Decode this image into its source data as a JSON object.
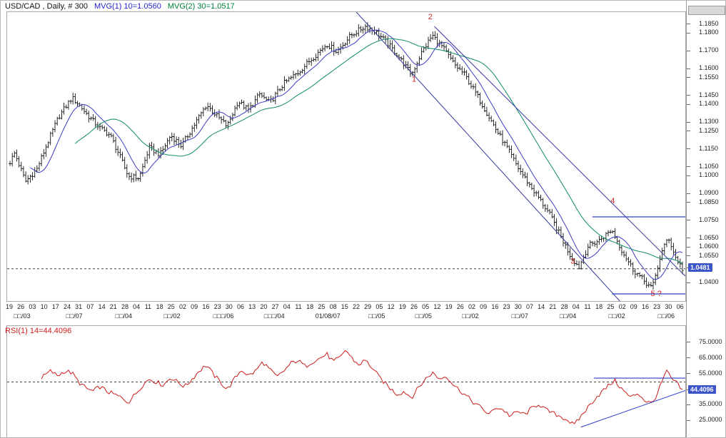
{
  "header": {
    "symbol_title": "USD/CAD , Daily, # 300",
    "mvg1_label": "MVG(1) 10=1.0560",
    "mvg2_label": "MVG(2) 30=1.0517"
  },
  "rsi_header": {
    "label": "RSI(1) 14=44.4096"
  },
  "colors": {
    "symbol_text": "#111111",
    "mvg1_text": "#2323cc",
    "mvg2_text": "#00803c",
    "rsi_text": "#cc1c1c",
    "bars": "#151515",
    "mvg10_line": "#3a3ec2",
    "mvg30_line": "#0f8a66",
    "trendline": "#33399b",
    "hline": "#2b3fc8",
    "dashed": "#444444",
    "rsi_line": "#cc1c1c",
    "badge_bg": "#3c55c8",
    "badge_text": "#ffffff",
    "annotation": "#cc2222",
    "axis_text": "#222222"
  },
  "chart_data": [
    {
      "type": "candlestick",
      "symbol": "USD/CAD",
      "timeframe": "Daily",
      "bars": 300,
      "ylim": [
        1.03,
        1.192
      ],
      "y_ticks": [
        "1.1850",
        "1.1800",
        "1.1700",
        "1.1600",
        "1.1550",
        "1.1450",
        "1.1400",
        "1.1300",
        "1.1250",
        "1.1150",
        "1.1050",
        "1.1000",
        "1.0900",
        "1.0850",
        "1.0750",
        "1.0650",
        "1.0600",
        "1.0550",
        "1.0400"
      ],
      "last_price_label": "1.0481",
      "last_price": 1.0481,
      "moving_averages": [
        {
          "name": "MVG(1)",
          "period": 10,
          "value": 1.056
        },
        {
          "name": "MVG(2)",
          "period": 30,
          "value": 1.0517
        }
      ],
      "price_keyframes": [
        [
          0.0,
          1.108
        ],
        [
          0.007,
          1.113
        ],
        [
          0.023,
          1.097
        ],
        [
          0.04,
          1.104
        ],
        [
          0.055,
          1.118
        ],
        [
          0.072,
          1.133
        ],
        [
          0.092,
          1.144
        ],
        [
          0.103,
          1.14
        ],
        [
          0.118,
          1.133
        ],
        [
          0.134,
          1.127
        ],
        [
          0.149,
          1.123
        ],
        [
          0.16,
          1.114
        ],
        [
          0.176,
          1.1
        ],
        [
          0.192,
          1.099
        ],
        [
          0.207,
          1.116
        ],
        [
          0.223,
          1.112
        ],
        [
          0.239,
          1.123
        ],
        [
          0.255,
          1.117
        ],
        [
          0.271,
          1.127
        ],
        [
          0.292,
          1.14
        ],
        [
          0.307,
          1.134
        ],
        [
          0.323,
          1.128
        ],
        [
          0.339,
          1.142
        ],
        [
          0.355,
          1.137
        ],
        [
          0.371,
          1.146
        ],
        [
          0.386,
          1.141
        ],
        [
          0.407,
          1.152
        ],
        [
          0.428,
          1.158
        ],
        [
          0.449,
          1.166
        ],
        [
          0.471,
          1.174
        ],
        [
          0.486,
          1.17
        ],
        [
          0.507,
          1.179
        ],
        [
          0.528,
          1.184
        ],
        [
          0.544,
          1.181
        ],
        [
          0.56,
          1.175
        ],
        [
          0.576,
          1.168
        ],
        [
          0.597,
          1.157
        ],
        [
          0.613,
          1.17
        ],
        [
          0.628,
          1.179
        ],
        [
          0.644,
          1.172
        ],
        [
          0.66,
          1.163
        ],
        [
          0.676,
          1.157
        ],
        [
          0.692,
          1.147
        ],
        [
          0.707,
          1.137
        ],
        [
          0.723,
          1.126
        ],
        [
          0.739,
          1.116
        ],
        [
          0.755,
          1.105
        ],
        [
          0.771,
          1.096
        ],
        [
          0.786,
          1.088
        ],
        [
          0.802,
          1.079
        ],
        [
          0.818,
          1.067
        ],
        [
          0.834,
          1.055
        ],
        [
          0.846,
          1.049
        ],
        [
          0.86,
          1.061
        ],
        [
          0.876,
          1.064
        ],
        [
          0.895,
          1.07
        ],
        [
          0.909,
          1.059
        ],
        [
          0.926,
          1.048
        ],
        [
          0.941,
          1.042
        ],
        [
          0.955,
          1.037
        ],
        [
          0.968,
          1.056
        ],
        [
          0.979,
          1.066
        ],
        [
          0.989,
          1.055
        ],
        [
          1.0,
          1.048
        ]
      ],
      "trendlines": [
        {
          "t1": 0.515,
          "p1": 1.192,
          "t2": 0.913,
          "p2": 1.026
        },
        {
          "t1": 0.63,
          "p1": 1.184,
          "t2": 1.0,
          "p2": 1.044
        }
      ],
      "hlines": [
        {
          "value": 1.0772,
          "t1": 0.863,
          "t2": 1.0
        },
        {
          "value": 1.034,
          "t1": 0.892,
          "t2": 1.0
        }
      ],
      "dashed_hline": 1.0481,
      "annotations": [
        {
          "label": "1",
          "t": 0.6,
          "value": 1.153
        },
        {
          "label": "2",
          "t": 0.624,
          "value": 1.188
        },
        {
          "label": "3",
          "t": 0.834,
          "value": 1.051
        },
        {
          "label": "4",
          "t": 0.893,
          "value": 1.0848
        },
        {
          "label": "5 ?",
          "t": 0.957,
          "value": 1.0328
        }
      ],
      "x_labels_days": [
        "19",
        "26",
        "03",
        "10",
        "17",
        "24",
        "31",
        "07",
        "14",
        "21",
        "28",
        "04",
        "11",
        "18",
        "25",
        "02",
        "09",
        "16",
        "23",
        "30",
        "06",
        "13",
        "20",
        "27",
        "04",
        "11",
        "18",
        "25",
        "08",
        "15",
        "22",
        "29",
        "05",
        "12",
        "19",
        "26",
        "05",
        "12",
        "19",
        "26",
        "02",
        "09",
        "16",
        "23",
        "30",
        "07",
        "14",
        "21",
        "28",
        "04",
        "11",
        "18",
        "25",
        "02",
        "09",
        "16",
        "23",
        "30",
        "06"
      ],
      "x_labels_months": [
        {
          "t": 0.023,
          "label": "□□/03"
        },
        {
          "t": 0.1,
          "label": "□□/07"
        },
        {
          "t": 0.173,
          "label": "□□/04"
        },
        {
          "t": 0.244,
          "label": "□□/02"
        },
        {
          "t": 0.32,
          "label": "□□□/06"
        },
        {
          "t": 0.395,
          "label": "□□□/04"
        },
        {
          "t": 0.474,
          "label": "01/08/07"
        },
        {
          "t": 0.546,
          "label": "□□/05"
        },
        {
          "t": 0.615,
          "label": "□□/05"
        },
        {
          "t": 0.684,
          "label": "□□/02"
        },
        {
          "t": 0.757,
          "label": "□□/07"
        },
        {
          "t": 0.828,
          "label": "□□/04"
        },
        {
          "t": 0.9,
          "label": "□□/02"
        },
        {
          "t": 0.973,
          "label": "□□/06"
        }
      ]
    },
    {
      "type": "line",
      "name": "RSI",
      "period": 14,
      "last_value_label": "44.4096",
      "last_value": 44.4096,
      "ylim": [
        14,
        86
      ],
      "y_ticks": [
        "75.0000",
        "65.0000",
        "55.0000",
        "35.0000",
        "25.0000"
      ],
      "dashed_hline": 50,
      "hline": {
        "value": 52.5,
        "t1": 0.865,
        "t2": 1.0
      },
      "trendline": {
        "t1": 0.846,
        "v1": 21,
        "t2": 1.0,
        "v2": 44.5
      },
      "start_t": 0.045,
      "keyframes": [
        [
          0.045,
          52
        ],
        [
          0.06,
          57
        ],
        [
          0.071,
          54
        ],
        [
          0.081,
          57
        ],
        [
          0.092,
          56
        ],
        [
          0.102,
          50
        ],
        [
          0.113,
          46
        ],
        [
          0.123,
          44
        ],
        [
          0.134,
          47
        ],
        [
          0.144,
          44
        ],
        [
          0.155,
          42
        ],
        [
          0.165,
          40
        ],
        [
          0.176,
          37
        ],
        [
          0.186,
          42
        ],
        [
          0.197,
          48
        ],
        [
          0.207,
          52
        ],
        [
          0.218,
          50
        ],
        [
          0.228,
          48
        ],
        [
          0.239,
          53
        ],
        [
          0.249,
          50
        ],
        [
          0.26,
          47
        ],
        [
          0.271,
          52
        ],
        [
          0.281,
          57
        ],
        [
          0.292,
          61
        ],
        [
          0.302,
          55
        ],
        [
          0.313,
          50
        ],
        [
          0.323,
          45
        ],
        [
          0.334,
          52
        ],
        [
          0.344,
          58
        ],
        [
          0.355,
          54
        ],
        [
          0.365,
          57
        ],
        [
          0.376,
          63
        ],
        [
          0.386,
          58
        ],
        [
          0.397,
          53
        ],
        [
          0.407,
          57
        ],
        [
          0.418,
          62
        ],
        [
          0.428,
          64
        ],
        [
          0.439,
          60
        ],
        [
          0.449,
          63
        ],
        [
          0.46,
          65
        ],
        [
          0.471,
          68
        ],
        [
          0.481,
          63
        ],
        [
          0.492,
          66
        ],
        [
          0.499,
          71
        ],
        [
          0.507,
          66
        ],
        [
          0.518,
          61
        ],
        [
          0.528,
          64
        ],
        [
          0.539,
          59
        ],
        [
          0.549,
          53
        ],
        [
          0.565,
          46
        ],
        [
          0.576,
          42
        ],
        [
          0.586,
          44
        ],
        [
          0.597,
          40
        ],
        [
          0.607,
          46
        ],
        [
          0.618,
          52
        ],
        [
          0.628,
          56
        ],
        [
          0.639,
          52
        ],
        [
          0.649,
          54
        ],
        [
          0.66,
          48
        ],
        [
          0.671,
          44
        ],
        [
          0.681,
          40
        ],
        [
          0.692,
          36
        ],
        [
          0.702,
          33
        ],
        [
          0.713,
          29
        ],
        [
          0.723,
          34
        ],
        [
          0.734,
          32
        ],
        [
          0.744,
          28
        ],
        [
          0.755,
          31
        ],
        [
          0.765,
          29
        ],
        [
          0.776,
          33
        ],
        [
          0.786,
          36
        ],
        [
          0.797,
          32
        ],
        [
          0.807,
          30
        ],
        [
          0.818,
          28
        ],
        [
          0.828,
          26
        ],
        [
          0.839,
          22
        ],
        [
          0.849,
          28
        ],
        [
          0.86,
          34
        ],
        [
          0.871,
          40
        ],
        [
          0.881,
          44
        ],
        [
          0.891,
          48
        ],
        [
          0.899,
          51
        ],
        [
          0.913,
          44
        ],
        [
          0.923,
          40
        ],
        [
          0.934,
          43
        ],
        [
          0.944,
          38
        ],
        [
          0.955,
          36
        ],
        [
          0.965,
          45
        ],
        [
          0.976,
          57
        ],
        [
          0.984,
          52
        ],
        [
          0.992,
          49
        ],
        [
          1.0,
          44.4
        ]
      ]
    }
  ]
}
